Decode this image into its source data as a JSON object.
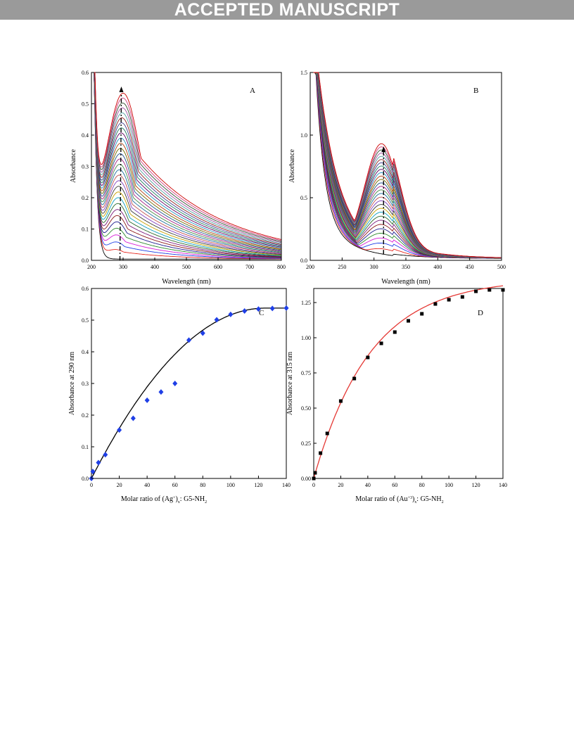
{
  "banner": "ACCEPTED MANUSCRIPT",
  "chart_data": [
    {
      "id": "A",
      "panel_label": "A",
      "type": "line",
      "xlabel": "Wavelength (nm)",
      "ylabel": "Absorbance",
      "xlim": [
        200,
        800
      ],
      "ylim": [
        0,
        0.6
      ],
      "xticks": [
        200,
        300,
        400,
        500,
        600,
        700,
        800
      ],
      "yticks": [
        0.0,
        0.1,
        0.2,
        0.3,
        0.4,
        0.5,
        0.6
      ],
      "series_count": 30,
      "peak_marker_nm": 290
    },
    {
      "id": "B",
      "panel_label": "B",
      "type": "line",
      "xlabel": "Wavelength (nm)",
      "ylabel": "Absorbance",
      "xlim": [
        200,
        500
      ],
      "ylim": [
        0,
        1.5
      ],
      "xticks": [
        200,
        250,
        300,
        350,
        400,
        450,
        500
      ],
      "yticks": [
        0.0,
        0.5,
        1.0,
        1.5
      ],
      "series_count": 30,
      "peak_marker_nm": 315
    },
    {
      "id": "C",
      "panel_label": "C",
      "type": "scatter",
      "xlabel_base": "Molar ratio of (Ag",
      "xlabel_sup": "+",
      "xlabel_mid": ")",
      "xlabel_sub": "x",
      "xlabel_end": ": G5-NH",
      "xlabel_sub2": "2",
      "ylabel": "Absorbance at 290 nm",
      "xlim": [
        0,
        140
      ],
      "ylim": [
        0,
        0.6
      ],
      "xticks": [
        0,
        20,
        40,
        60,
        80,
        100,
        120,
        140
      ],
      "yticks": [
        0.0,
        0.1,
        0.2,
        0.3,
        0.4,
        0.5,
        0.6
      ],
      "x": [
        0,
        1,
        5,
        10,
        20,
        30,
        40,
        50,
        60,
        70,
        80,
        90,
        100,
        110,
        120,
        130,
        140
      ],
      "y": [
        0.0,
        0.022,
        0.05,
        0.075,
        0.153,
        0.19,
        0.247,
        0.273,
        0.3,
        0.437,
        0.459,
        0.501,
        0.518,
        0.529,
        0.535,
        0.537,
        0.538
      ],
      "marker": "diamond",
      "marker_color": "#1f3fe6",
      "fit_color": "#000000"
    },
    {
      "id": "D",
      "panel_label": "D",
      "type": "scatter",
      "xlabel_base": "Molar ratio of (Au",
      "xlabel_sup": "+3",
      "xlabel_mid": ")",
      "xlabel_sub": "x",
      "xlabel_end": ": G5-NH",
      "xlabel_sub2": "2",
      "ylabel": "Absorbance at 315 nm",
      "xlim": [
        0,
        140
      ],
      "ylim": [
        0,
        1.35
      ],
      "xticks": [
        0,
        20,
        40,
        60,
        80,
        100,
        120,
        140
      ],
      "yticks": [
        0.0,
        0.25,
        0.5,
        0.75,
        1.0,
        1.25
      ],
      "ytick_labels": [
        "0.00",
        "0.25",
        "0.50",
        "0.75",
        "1.00",
        "1.25"
      ],
      "x": [
        0,
        1,
        5,
        10,
        20,
        30,
        40,
        50,
        60,
        70,
        80,
        90,
        100,
        110,
        120,
        130,
        140
      ],
      "y": [
        0.0,
        0.04,
        0.18,
        0.32,
        0.55,
        0.71,
        0.86,
        0.96,
        1.04,
        1.12,
        1.17,
        1.24,
        1.27,
        1.29,
        1.33,
        1.34,
        1.34
      ],
      "marker": "square",
      "marker_color": "#000000",
      "fit_color": "#e53935"
    }
  ]
}
